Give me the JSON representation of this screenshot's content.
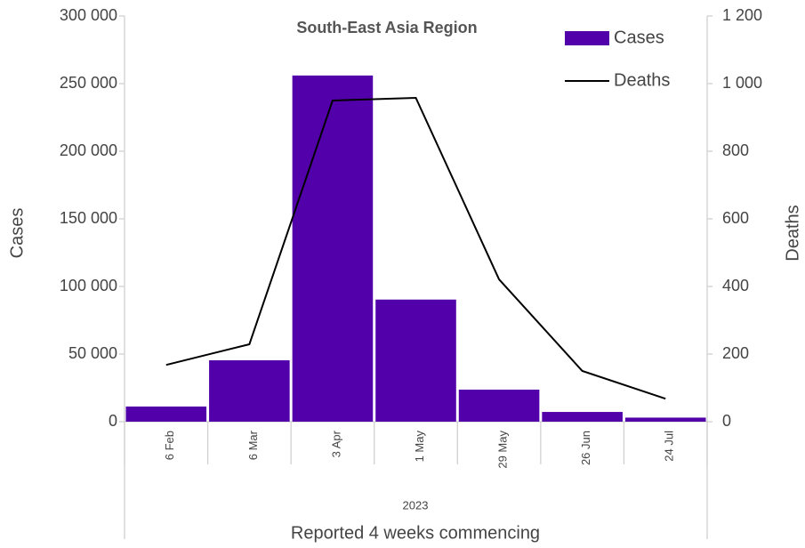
{
  "chart_data": {
    "type": "bar_line",
    "title": "South-East Asia Region",
    "categories": [
      "6 Feb",
      "6 Mar",
      "3 Apr",
      "1 May",
      "29 May",
      "26 Jun",
      "24 Jul"
    ],
    "category_group": "2023",
    "xlabel": "Reported 4 weeks commencing",
    "ylabel": "Cases",
    "y2label": "Deaths",
    "series": [
      {
        "name": "Cases",
        "color": "#5100aa",
        "values": [
          11200,
          45400,
          256000,
          90300,
          23700,
          7200,
          3000
        ]
      },
      {
        "name": "Deaths",
        "color": "#000000",
        "axis": "y2",
        "values": [
          168,
          229,
          950,
          958,
          421,
          150,
          68
        ]
      }
    ],
    "ylim": [
      0,
      300000
    ],
    "yticks": [
      0,
      {
        "value": 50000,
        "label": "50 000"
      },
      {
        "value": 100000,
        "label": "100 000"
      },
      {
        "value": 150000,
        "label": "150 000"
      },
      {
        "value": 200000,
        "label": "200 000"
      },
      {
        "value": 250000,
        "label": "250 000"
      },
      {
        "value": 300000,
        "label": "300 000"
      }
    ],
    "y2lim": [
      0,
      1200
    ],
    "y2ticks": [
      0,
      200,
      400,
      600,
      800,
      {
        "value": 1000,
        "label": "1 000"
      },
      {
        "value": 1200,
        "label": "1 200"
      }
    ],
    "legend": "top-right"
  }
}
